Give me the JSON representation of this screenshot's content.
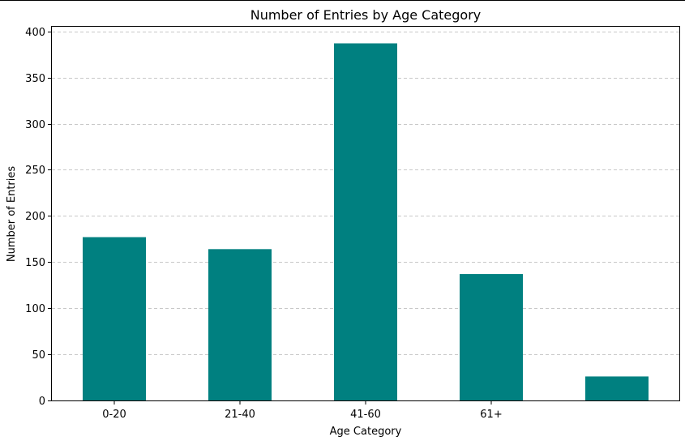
{
  "chart_data": {
    "type": "bar",
    "title": "Number of Entries by Age Category",
    "xlabel": "Age Category",
    "ylabel": "Number of Entries",
    "categories": [
      "0-20",
      "21-40",
      "41-60",
      "61+",
      ""
    ],
    "values": [
      177,
      164,
      387,
      137,
      26
    ],
    "ylim": [
      0,
      405
    ],
    "yticks": [
      0,
      50,
      100,
      150,
      200,
      250,
      300,
      350,
      400
    ],
    "grid": "y-dashed",
    "bar_color": "#008080",
    "grid_color": "#c8c8c8"
  }
}
